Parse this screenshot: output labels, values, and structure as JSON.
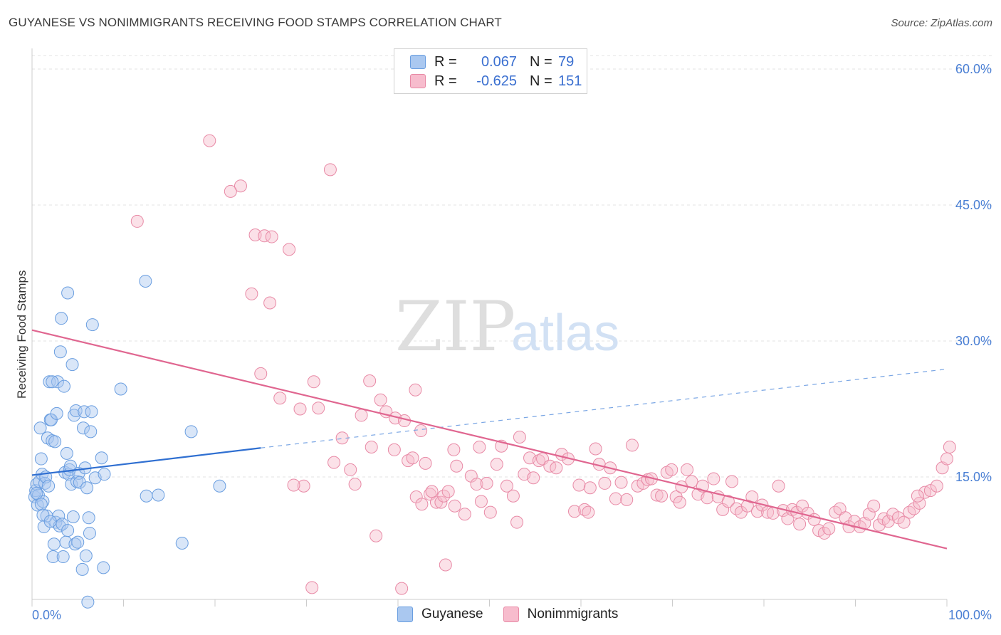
{
  "title": "GUYANESE VS NONIMMIGRANTS RECEIVING FOOD STAMPS CORRELATION CHART",
  "source": "Source: ZipAtlas.com",
  "watermark": {
    "zip": "ZIP",
    "atlas": "atlas"
  },
  "legend": {
    "rows": [
      {
        "r_label": "R =",
        "r_value": "0.067",
        "n_label": "N =",
        "n_value": "79",
        "color": "#aac8f0",
        "border": "#6a9ee0"
      },
      {
        "r_label": "R =",
        "r_value": "-0.625",
        "n_label": "N =",
        "n_value": "151",
        "color": "#f7bccd",
        "border": "#e88aa6"
      }
    ]
  },
  "bottom_legend": [
    {
      "label": "Guyanese",
      "color": "#aac8f0",
      "border": "#6a9ee0"
    },
    {
      "label": "Nonimmigrants",
      "color": "#f7bccd",
      "border": "#e88aa6"
    }
  ],
  "chart_data": {
    "type": "scatter",
    "title": "GUYANESE VS NONIMMIGRANTS RECEIVING FOOD STAMPS CORRELATION CHART",
    "xlabel": "",
    "ylabel": "Receiving Food Stamps",
    "xlim": [
      0,
      100
    ],
    "ylim": [
      0,
      62
    ],
    "x_tick_labels": [
      {
        "value": 0,
        "label": "0.0%"
      },
      {
        "value": 100,
        "label": "100.0%"
      }
    ],
    "y_tick_labels": [
      {
        "value": 15,
        "label": "15.0%"
      },
      {
        "value": 30,
        "label": "30.0%"
      },
      {
        "value": 45,
        "label": "45.0%"
      },
      {
        "value": 60,
        "label": "60.0%"
      }
    ],
    "grid": true,
    "series": [
      {
        "name": "Guyanese",
        "color": "#6a9ee0",
        "fill": "rgba(170,200,240,0.45)",
        "trend": {
          "x0": 0,
          "y0": 15.2,
          "x1": 25,
          "y1": 18.2,
          "dashed_to": 100,
          "dashed_y": 26.9
        },
        "points": [
          [
            0.3,
            12.8
          ],
          [
            0.4,
            13.5
          ],
          [
            0.5,
            14.2
          ],
          [
            0.6,
            11.9
          ],
          [
            0.7,
            13.0
          ],
          [
            0.8,
            14.5
          ],
          [
            0.9,
            20.4
          ],
          [
            1.0,
            17.0
          ],
          [
            1.1,
            15.3
          ],
          [
            1.2,
            12.3
          ],
          [
            1.3,
            9.5
          ],
          [
            1.4,
            14.3
          ],
          [
            1.5,
            15.0
          ],
          [
            1.6,
            10.7
          ],
          [
            1.7,
            19.3
          ],
          [
            1.8,
            14.0
          ],
          [
            1.9,
            25.5
          ],
          [
            2.0,
            21.3
          ],
          [
            2.1,
            21.3
          ],
          [
            2.2,
            19.0
          ],
          [
            2.3,
            6.2
          ],
          [
            2.4,
            7.6
          ],
          [
            2.5,
            18.9
          ],
          [
            2.6,
            10.0
          ],
          [
            2.7,
            22.0
          ],
          [
            2.8,
            25.5
          ],
          [
            2.9,
            10.7
          ],
          [
            3.0,
            9.6
          ],
          [
            3.1,
            28.8
          ],
          [
            3.2,
            32.5
          ],
          [
            3.3,
            9.8
          ],
          [
            3.4,
            6.2
          ],
          [
            3.5,
            25.0
          ],
          [
            3.6,
            15.5
          ],
          [
            3.7,
            7.8
          ],
          [
            3.8,
            17.6
          ],
          [
            3.9,
            9.1
          ],
          [
            4.0,
            15.3
          ],
          [
            4.1,
            15.8
          ],
          [
            4.2,
            16.2
          ],
          [
            4.3,
            14.2
          ],
          [
            4.4,
            27.4
          ],
          [
            4.5,
            10.6
          ],
          [
            4.6,
            21.8
          ],
          [
            4.7,
            7.6
          ],
          [
            4.8,
            22.3
          ],
          [
            4.9,
            14.5
          ],
          [
            5.0,
            7.8
          ],
          [
            5.1,
            15.4
          ],
          [
            5.2,
            14.4
          ],
          [
            5.5,
            4.8
          ],
          [
            5.6,
            20.4
          ],
          [
            5.7,
            22.2
          ],
          [
            5.8,
            16.0
          ],
          [
            5.9,
            6.3
          ],
          [
            6.0,
            13.8
          ],
          [
            6.1,
            1.2
          ],
          [
            6.2,
            10.5
          ],
          [
            6.3,
            8.8
          ],
          [
            6.4,
            20.0
          ],
          [
            6.5,
            22.2
          ],
          [
            6.6,
            31.8
          ],
          [
            6.9,
            14.9
          ],
          [
            7.6,
            17.1
          ],
          [
            7.8,
            5.0
          ],
          [
            7.9,
            15.3
          ],
          [
            9.7,
            24.7
          ],
          [
            12.4,
            36.6
          ],
          [
            12.5,
            12.9
          ],
          [
            13.8,
            13.0
          ],
          [
            16.4,
            7.7
          ],
          [
            17.4,
            20.0
          ],
          [
            20.5,
            14.0
          ],
          [
            3.9,
            35.3
          ],
          [
            2.2,
            25.5
          ],
          [
            0.5,
            13.2
          ],
          [
            1.0,
            12.0
          ],
          [
            1.2,
            10.8
          ],
          [
            2.0,
            10.1
          ]
        ]
      },
      {
        "name": "Nonimmigrants",
        "color": "#e88aa6",
        "fill": "rgba(247,188,205,0.45)",
        "trend": {
          "x0": 0,
          "y0": 31.2,
          "x1": 100,
          "y1": 7.1
        },
        "points": [
          [
            11.5,
            43.2
          ],
          [
            19.4,
            52.1
          ],
          [
            21.7,
            46.5
          ],
          [
            22.8,
            47.1
          ],
          [
            24.4,
            41.7
          ],
          [
            25.4,
            41.6
          ],
          [
            26.2,
            41.5
          ],
          [
            28.1,
            40.1
          ],
          [
            32.6,
            48.9
          ],
          [
            24.0,
            35.2
          ],
          [
            26.0,
            34.2
          ],
          [
            25.0,
            26.4
          ],
          [
            27.1,
            23.7
          ],
          [
            29.3,
            22.5
          ],
          [
            30.8,
            25.5
          ],
          [
            31.3,
            22.6
          ],
          [
            33.9,
            19.3
          ],
          [
            36.0,
            21.8
          ],
          [
            36.9,
            25.6
          ],
          [
            38.1,
            23.5
          ],
          [
            38.7,
            22.2
          ],
          [
            39.7,
            21.5
          ],
          [
            40.7,
            21.2
          ],
          [
            41.9,
            24.6
          ],
          [
            42.5,
            20.1
          ],
          [
            43.0,
            16.5
          ],
          [
            29.7,
            14.0
          ],
          [
            33.0,
            16.6
          ],
          [
            34.8,
            15.8
          ],
          [
            35.3,
            14.2
          ],
          [
            37.6,
            8.5
          ],
          [
            37.1,
            18.3
          ],
          [
            39.6,
            18.0
          ],
          [
            41.1,
            16.8
          ],
          [
            41.6,
            17.1
          ],
          [
            42.0,
            12.8
          ],
          [
            42.6,
            12.0
          ],
          [
            43.5,
            13.1
          ],
          [
            44.2,
            12.2
          ],
          [
            44.7,
            12.2
          ],
          [
            45.0,
            12.9
          ],
          [
            45.2,
            5.3
          ],
          [
            46.1,
            18.0
          ],
          [
            46.4,
            16.2
          ],
          [
            46.2,
            11.8
          ],
          [
            47.3,
            10.9
          ],
          [
            48.0,
            15.1
          ],
          [
            48.6,
            14.2
          ],
          [
            49.1,
            12.3
          ],
          [
            49.7,
            14.3
          ],
          [
            50.1,
            11.1
          ],
          [
            50.8,
            16.4
          ],
          [
            51.3,
            18.4
          ],
          [
            51.9,
            14.0
          ],
          [
            52.6,
            12.9
          ],
          [
            53.3,
            19.4
          ],
          [
            53.8,
            15.3
          ],
          [
            54.4,
            17.1
          ],
          [
            54.8,
            14.9
          ],
          [
            55.4,
            16.8
          ],
          [
            55.8,
            17.0
          ],
          [
            56.6,
            16.2
          ],
          [
            57.3,
            16.0
          ],
          [
            57.9,
            17.5
          ],
          [
            58.6,
            17.0
          ],
          [
            59.3,
            11.2
          ],
          [
            59.8,
            14.1
          ],
          [
            60.4,
            11.4
          ],
          [
            61.0,
            13.8
          ],
          [
            61.6,
            18.1
          ],
          [
            62.0,
            16.4
          ],
          [
            62.6,
            14.3
          ],
          [
            63.2,
            16.0
          ],
          [
            63.8,
            12.6
          ],
          [
            64.4,
            14.4
          ],
          [
            65.0,
            12.5
          ],
          [
            65.6,
            18.5
          ],
          [
            66.2,
            14.0
          ],
          [
            66.8,
            14.3
          ],
          [
            67.3,
            14.7
          ],
          [
            67.7,
            14.8
          ],
          [
            68.3,
            13.0
          ],
          [
            68.8,
            12.9
          ],
          [
            69.4,
            15.5
          ],
          [
            69.9,
            15.8
          ],
          [
            70.4,
            12.8
          ],
          [
            71.0,
            13.9
          ],
          [
            71.6,
            15.8
          ],
          [
            72.1,
            14.5
          ],
          [
            72.8,
            13.1
          ],
          [
            73.3,
            14.0
          ],
          [
            73.8,
            12.7
          ],
          [
            74.5,
            14.8
          ],
          [
            75.0,
            12.8
          ],
          [
            75.5,
            11.4
          ],
          [
            76.1,
            12.3
          ],
          [
            76.5,
            14.5
          ],
          [
            77.0,
            11.5
          ],
          [
            77.5,
            11.1
          ],
          [
            78.2,
            11.8
          ],
          [
            78.7,
            12.8
          ],
          [
            79.3,
            11.2
          ],
          [
            79.8,
            11.9
          ],
          [
            80.4,
            11.1
          ],
          [
            81.0,
            11.0
          ],
          [
            81.6,
            14.0
          ],
          [
            82.1,
            11.3
          ],
          [
            82.6,
            10.4
          ],
          [
            83.1,
            11.4
          ],
          [
            83.6,
            11.1
          ],
          [
            84.2,
            11.8
          ],
          [
            84.8,
            11.0
          ],
          [
            85.5,
            10.3
          ],
          [
            86.0,
            9.1
          ],
          [
            86.6,
            8.8
          ],
          [
            87.1,
            9.3
          ],
          [
            87.8,
            11.1
          ],
          [
            88.3,
            11.5
          ],
          [
            88.9,
            10.5
          ],
          [
            89.3,
            9.5
          ],
          [
            89.9,
            10.1
          ],
          [
            90.5,
            9.5
          ],
          [
            91.0,
            9.9
          ],
          [
            91.5,
            10.9
          ],
          [
            92.0,
            11.8
          ],
          [
            92.6,
            9.7
          ],
          [
            93.1,
            10.4
          ],
          [
            93.6,
            10.1
          ],
          [
            94.1,
            10.9
          ],
          [
            94.7,
            10.5
          ],
          [
            95.3,
            10.0
          ],
          [
            95.9,
            11.1
          ],
          [
            96.4,
            11.5
          ],
          [
            97.0,
            12.1
          ],
          [
            97.6,
            13.3
          ],
          [
            98.2,
            13.5
          ],
          [
            98.9,
            14.0
          ],
          [
            99.5,
            16.0
          ],
          [
            100.0,
            17.0
          ],
          [
            100.3,
            18.3
          ],
          [
            28.6,
            14.1
          ],
          [
            30.6,
            2.8
          ],
          [
            40.4,
            2.7
          ],
          [
            43.7,
            13.4
          ],
          [
            45.5,
            13.4
          ],
          [
            48.9,
            18.3
          ],
          [
            53.0,
            10.0
          ],
          [
            60.8,
            11.1
          ],
          [
            70.8,
            12.2
          ],
          [
            83.9,
            9.8
          ],
          [
            96.8,
            12.9
          ]
        ]
      }
    ]
  }
}
